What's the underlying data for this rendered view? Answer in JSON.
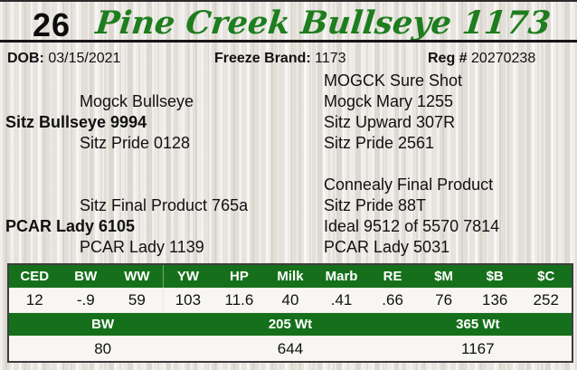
{
  "header": {
    "lot_number": "26",
    "title": "Pine Creek Bullseye 1173"
  },
  "info": {
    "dob_label": "DOB:",
    "dob_value": "03/15/2021",
    "freeze_brand_label": "Freeze Brand:",
    "freeze_brand_value": "1173",
    "reg_label": "Reg #",
    "reg_value": "20270238"
  },
  "pedigree": {
    "rows": [
      {
        "left": "",
        "right": "MOGCK Sure Shot"
      },
      {
        "left": "Mogck Bullseye",
        "right": "Mogck Mary 1255"
      },
      {
        "left": "Sitz Bullseye 9994",
        "right": "Sitz Upward 307R"
      },
      {
        "left": "Sitz Pride 0128",
        "right": "Sitz Pride 2561"
      },
      {
        "left": "",
        "right": "Connealy Final Product"
      },
      {
        "left": "Sitz Final Product 765a",
        "right": "Sitz Pride 88T"
      },
      {
        "left": "PCAR Lady 6105",
        "right": "Ideal 9512 of 5570 7814"
      },
      {
        "left": "PCAR Lady 1139",
        "right": "PCAR Lady 5031"
      }
    ]
  },
  "epd_table": {
    "headers": [
      "CED",
      "BW",
      "WW",
      "YW",
      "HP",
      "Milk",
      "Marb",
      "RE",
      "$M",
      "$B",
      "$C"
    ],
    "values": [
      "12",
      "-.9",
      "59",
      "103",
      "11.6",
      "40",
      ".41",
      ".66",
      "76",
      "136",
      "252"
    ]
  },
  "weights_table": {
    "headers": [
      "BW",
      "205 Wt",
      "365 Wt"
    ],
    "values": [
      "80",
      "644",
      "1167"
    ]
  },
  "colors": {
    "table_green": "#16701b",
    "title_green": "#1e7d1e",
    "table_border": "#3d3d3d",
    "background": "#eae7e1"
  }
}
